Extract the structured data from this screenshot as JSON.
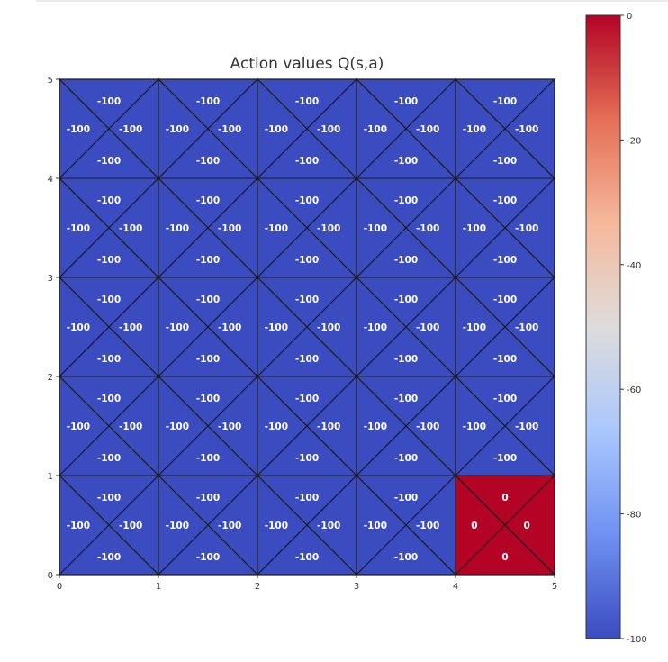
{
  "chart_data": {
    "type": "heatmap",
    "title": "Action values Q(s,a)",
    "xlabel": "",
    "ylabel": "",
    "xlim": [
      0,
      5
    ],
    "ylim": [
      0,
      5
    ],
    "x_ticks": [
      "0",
      "1",
      "2",
      "3",
      "4",
      "5"
    ],
    "y_ticks": [
      "0",
      "1",
      "2",
      "3",
      "4",
      "5"
    ],
    "grid_rows": 5,
    "grid_cols": 5,
    "actions": [
      "up",
      "left",
      "right",
      "down"
    ],
    "cells": [
      {
        "row": 0,
        "col": 0,
        "values": {
          "up": -100,
          "left": -100,
          "right": -100,
          "down": -100
        }
      },
      {
        "row": 0,
        "col": 1,
        "values": {
          "up": -100,
          "left": -100,
          "right": -100,
          "down": -100
        }
      },
      {
        "row": 0,
        "col": 2,
        "values": {
          "up": -100,
          "left": -100,
          "right": -100,
          "down": -100
        }
      },
      {
        "row": 0,
        "col": 3,
        "values": {
          "up": -100,
          "left": -100,
          "right": -100,
          "down": -100
        }
      },
      {
        "row": 0,
        "col": 4,
        "values": {
          "up": 0,
          "left": 0,
          "right": 0,
          "down": 0
        }
      },
      {
        "row": 1,
        "col": 0,
        "values": {
          "up": -100,
          "left": -100,
          "right": -100,
          "down": -100
        }
      },
      {
        "row": 1,
        "col": 1,
        "values": {
          "up": -100,
          "left": -100,
          "right": -100,
          "down": -100
        }
      },
      {
        "row": 1,
        "col": 2,
        "values": {
          "up": -100,
          "left": -100,
          "right": -100,
          "down": -100
        }
      },
      {
        "row": 1,
        "col": 3,
        "values": {
          "up": -100,
          "left": -100,
          "right": -100,
          "down": -100
        }
      },
      {
        "row": 1,
        "col": 4,
        "values": {
          "up": -100,
          "left": -100,
          "right": -100,
          "down": -100
        }
      },
      {
        "row": 2,
        "col": 0,
        "values": {
          "up": -100,
          "left": -100,
          "right": -100,
          "down": -100
        }
      },
      {
        "row": 2,
        "col": 1,
        "values": {
          "up": -100,
          "left": -100,
          "right": -100,
          "down": -100
        }
      },
      {
        "row": 2,
        "col": 2,
        "values": {
          "up": -100,
          "left": -100,
          "right": -100,
          "down": -100
        }
      },
      {
        "row": 2,
        "col": 3,
        "values": {
          "up": -100,
          "left": -100,
          "right": -100,
          "down": -100
        }
      },
      {
        "row": 2,
        "col": 4,
        "values": {
          "up": -100,
          "left": -100,
          "right": -100,
          "down": -100
        }
      },
      {
        "row": 3,
        "col": 0,
        "values": {
          "up": -100,
          "left": -100,
          "right": -100,
          "down": -100
        }
      },
      {
        "row": 3,
        "col": 1,
        "values": {
          "up": -100,
          "left": -100,
          "right": -100,
          "down": -100
        }
      },
      {
        "row": 3,
        "col": 2,
        "values": {
          "up": -100,
          "left": -100,
          "right": -100,
          "down": -100
        }
      },
      {
        "row": 3,
        "col": 3,
        "values": {
          "up": -100,
          "left": -100,
          "right": -100,
          "down": -100
        }
      },
      {
        "row": 3,
        "col": 4,
        "values": {
          "up": -100,
          "left": -100,
          "right": -100,
          "down": -100
        }
      },
      {
        "row": 4,
        "col": 0,
        "values": {
          "up": -100,
          "left": -100,
          "right": -100,
          "down": -100
        }
      },
      {
        "row": 4,
        "col": 1,
        "values": {
          "up": -100,
          "left": -100,
          "right": -100,
          "down": -100
        }
      },
      {
        "row": 4,
        "col": 2,
        "values": {
          "up": -100,
          "left": -100,
          "right": -100,
          "down": -100
        }
      },
      {
        "row": 4,
        "col": 3,
        "values": {
          "up": -100,
          "left": -100,
          "right": -100,
          "down": -100
        }
      },
      {
        "row": 4,
        "col": 4,
        "values": {
          "up": -100,
          "left": -100,
          "right": -100,
          "down": -100
        }
      }
    ],
    "colorbar": {
      "colormap": "coolwarm",
      "range": [
        -100,
        0
      ],
      "ticks": [
        "0",
        "-20",
        "-40",
        "-60",
        "-80",
        "-100"
      ],
      "tick_values": [
        0,
        -20,
        -40,
        -60,
        -80,
        -100
      ],
      "gradient": [
        "#3b4cc0",
        "#6f91f2",
        "#aac7fd",
        "#dddcdc",
        "#f6b89c",
        "#e46e56",
        "#b40426"
      ],
      "low_color": "#3b4cc0",
      "high_color": "#b40426"
    },
    "grid": false,
    "legend": "none"
  }
}
